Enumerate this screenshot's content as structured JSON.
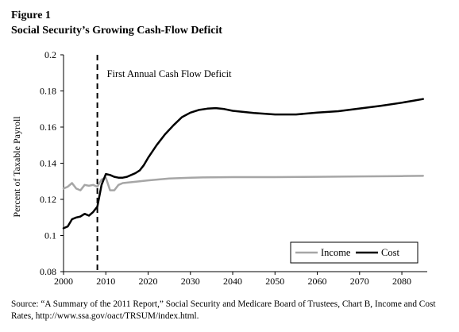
{
  "figure": {
    "label": "Figure 1",
    "title": "Social Security’s Growing Cash-Flow Deficit"
  },
  "source_note": "Source: “A Summary of the 2011 Report,” Social Security and Medicare Board of Trustees, Chart B, Income and Cost Rates, http://www.ssa.gov/oact/TRSUM/index.html.",
  "chart_data": {
    "type": "line",
    "title": "",
    "xlabel": "",
    "ylabel": "Percent of Taxable Payroll",
    "xlim": [
      2000,
      2086
    ],
    "ylim": [
      0.08,
      0.2
    ],
    "x_ticks": [
      "2000",
      "2010",
      "2020",
      "2030",
      "2040",
      "2050",
      "2060",
      "2070",
      "2080"
    ],
    "y_ticks": [
      "0.08",
      "0.1",
      "0.12",
      "0.14",
      "0.16",
      "0.18",
      "0.2"
    ],
    "grid": false,
    "legend_position": "bottom-right",
    "annotation": {
      "text": "First Annual Cash Flow Deficit",
      "x": 2008,
      "style": "dashed-vertical-line"
    },
    "series": [
      {
        "name": "Income",
        "color": "#a6a6a6",
        "x": [
          2000,
          2001,
          2002,
          2003,
          2004,
          2005,
          2006,
          2007,
          2008,
          2009,
          2010,
          2011,
          2012,
          2013,
          2014,
          2016,
          2018,
          2020,
          2025,
          2030,
          2035,
          2040,
          2050,
          2060,
          2070,
          2080,
          2085
        ],
        "values": [
          0.126,
          0.127,
          0.129,
          0.126,
          0.125,
          0.128,
          0.1275,
          0.128,
          0.127,
          0.131,
          0.132,
          0.125,
          0.125,
          0.128,
          0.129,
          0.1295,
          0.13,
          0.1305,
          0.1315,
          0.132,
          0.1322,
          0.1323,
          0.1323,
          0.1325,
          0.1327,
          0.1329,
          0.133
        ]
      },
      {
        "name": "Cost",
        "color": "#000000",
        "x": [
          2000,
          2001,
          2002,
          2003,
          2004,
          2005,
          2006,
          2007,
          2008,
          2009,
          2010,
          2011,
          2012,
          2013,
          2014,
          2015,
          2016,
          2017,
          2018,
          2019,
          2020,
          2022,
          2024,
          2026,
          2028,
          2030,
          2032,
          2034,
          2036,
          2038,
          2040,
          2045,
          2050,
          2055,
          2060,
          2065,
          2070,
          2075,
          2080,
          2085
        ],
        "values": [
          0.104,
          0.105,
          0.109,
          0.11,
          0.1105,
          0.112,
          0.111,
          0.113,
          0.116,
          0.128,
          0.134,
          0.1335,
          0.1325,
          0.132,
          0.132,
          0.1325,
          0.1335,
          0.1345,
          0.136,
          0.139,
          0.143,
          0.15,
          0.156,
          0.161,
          0.1655,
          0.168,
          0.1695,
          0.1702,
          0.1705,
          0.17,
          0.169,
          0.1678,
          0.167,
          0.167,
          0.168,
          0.1688,
          0.1703,
          0.1718,
          0.1735,
          0.1755
        ]
      }
    ]
  }
}
